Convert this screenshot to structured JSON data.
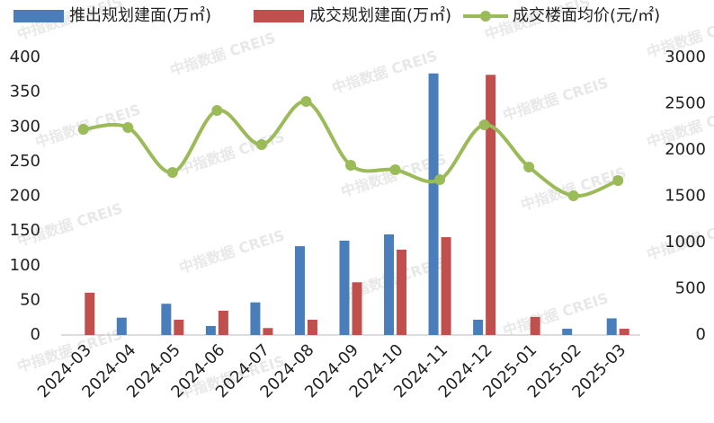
{
  "chart_data": {
    "type": "bar-line",
    "watermark": "中指数据 CREIS",
    "categories": [
      "2024-03",
      "2024-04",
      "2024-05",
      "2024-06",
      "2024-07",
      "2024-08",
      "2024-09",
      "2024-10",
      "2024-11",
      "2024-12",
      "2025-01",
      "2025-02",
      "2025-03"
    ],
    "series": [
      {
        "name": "推出规划建面(万㎡)",
        "color": "#4a7ebb",
        "type": "bar",
        "values": [
          0,
          25,
          45,
          13,
          47,
          128,
          136,
          145,
          377,
          22,
          0,
          9,
          24
        ]
      },
      {
        "name": "成交规划建面(万㎡)",
        "color": "#c0504d",
        "type": "bar",
        "values": [
          61,
          0,
          22,
          35,
          10,
          22,
          76,
          123,
          141,
          375,
          26,
          0,
          9
        ]
      },
      {
        "name": "成交楼面均价(元/㎡)",
        "color": "#9bbb59",
        "type": "line",
        "axis": "y2",
        "values": [
          2223,
          2243,
          1757,
          2427,
          2058,
          2524,
          1835,
          1786,
          1680,
          2272,
          1816,
          1505,
          1670
        ]
      }
    ],
    "ylim": [
      0,
      400
    ],
    "yticks": [
      0,
      50,
      100,
      150,
      200,
      250,
      300,
      350,
      400
    ],
    "y2lim": [
      0,
      3000
    ],
    "y2ticks": [
      0,
      500,
      1000,
      1500,
      2000,
      2500,
      3000
    ],
    "legend": "top",
    "grid": false
  }
}
